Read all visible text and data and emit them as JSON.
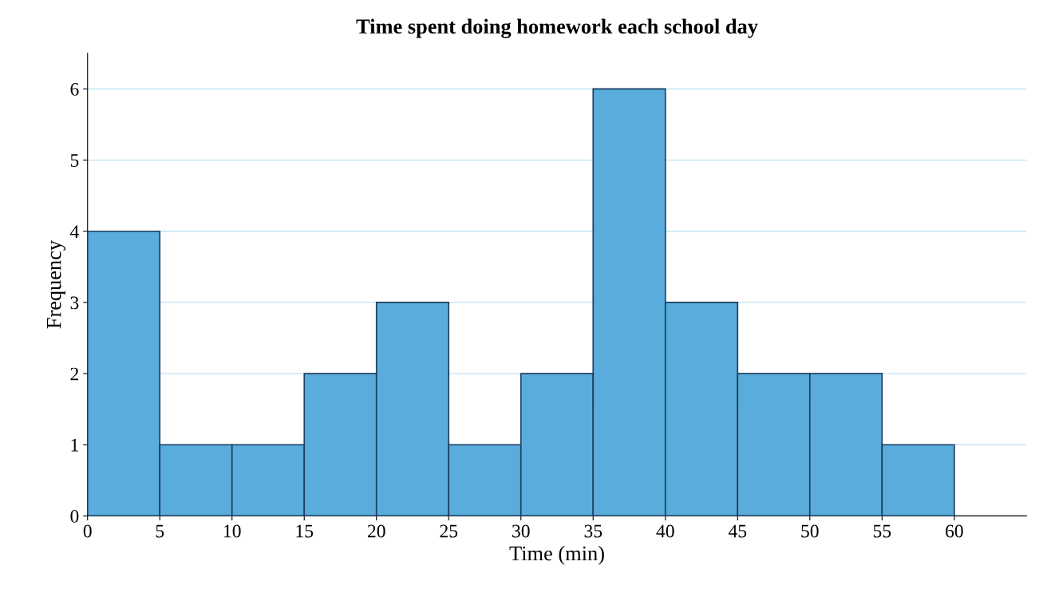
{
  "chart_data": {
    "type": "histogram",
    "title": "Time spent doing homework each school day",
    "xlabel": "Time (min)",
    "ylabel": "Frequency",
    "bins": [
      0,
      5,
      10,
      15,
      20,
      25,
      30,
      35,
      40,
      45,
      50,
      55,
      60
    ],
    "values": [
      4,
      1,
      1,
      2,
      3,
      1,
      2,
      6,
      3,
      2,
      2,
      1
    ],
    "color": "#5aacdc",
    "xlim": [
      0,
      65
    ],
    "xticks": [
      0,
      5,
      10,
      15,
      20,
      25,
      30,
      35,
      40,
      45,
      50,
      55,
      60
    ],
    "ylim": [
      0,
      6.5
    ],
    "yticks": [
      0,
      1,
      2,
      3,
      4,
      5,
      6
    ],
    "grid": "y"
  }
}
